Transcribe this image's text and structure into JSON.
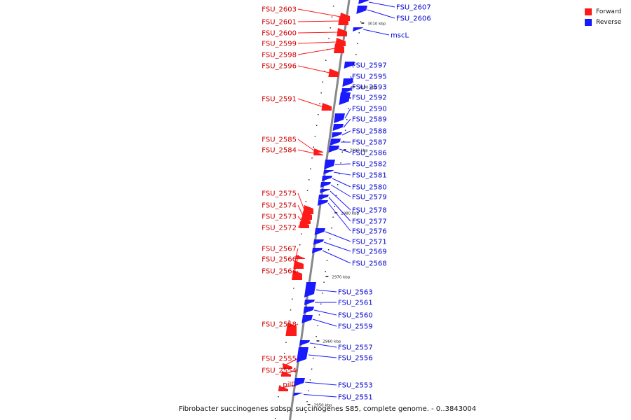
{
  "colors": {
    "forward": "#ff1a1a",
    "reverse": "#1a1aff",
    "axis": "#999999"
  },
  "legend": {
    "forward_label": "Forward",
    "reverse_label": "Reverse"
  },
  "caption": "Fibrobacter succinogenes subsp. succinogenes S85, complete genome. - 0..3843004",
  "ticks": [
    "3010 kbp",
    "3000 kbp",
    "2990 kbp",
    "2980 kbp",
    "2970 kbp",
    "2960 kbp",
    "2950 kbp"
  ],
  "forward_genes": [
    "FSU_2603",
    "FSU_2601",
    "FSU_2600",
    "FSU_2599",
    "FSU_2598",
    "FSU_2596",
    "FSU_2591",
    "FSU_2585",
    "FSU_2584",
    "FSU_2575",
    "FSU_2574",
    "FSU_2573",
    "FSU_2572",
    "FSU_2567",
    "FSU_2566",
    "FSU_2564",
    "FSU_2558",
    "FSU_2555",
    "FSU_2554",
    "pilD"
  ],
  "reverse_genes": [
    "FSU_2607",
    "FSU_2606",
    "mscL",
    "FSU_2597",
    "FSU_2595",
    "FSU_2593",
    "FSU_2592",
    "FSU_2590",
    "FSU_2589",
    "FSU_2588",
    "FSU_2587",
    "FSU_2586",
    "FSU_2582",
    "FSU_2581",
    "FSU_2580",
    "FSU_2579",
    "FSU_2578",
    "FSU_2577",
    "FSU_2576",
    "FSU_2571",
    "FSU_2569",
    "FSU_2568",
    "FSU_2563",
    "FSU_2561",
    "FSU_2560",
    "FSU_2559",
    "FSU_2557",
    "FSU_2556",
    "FSU_2553",
    "FSU_2551"
  ]
}
